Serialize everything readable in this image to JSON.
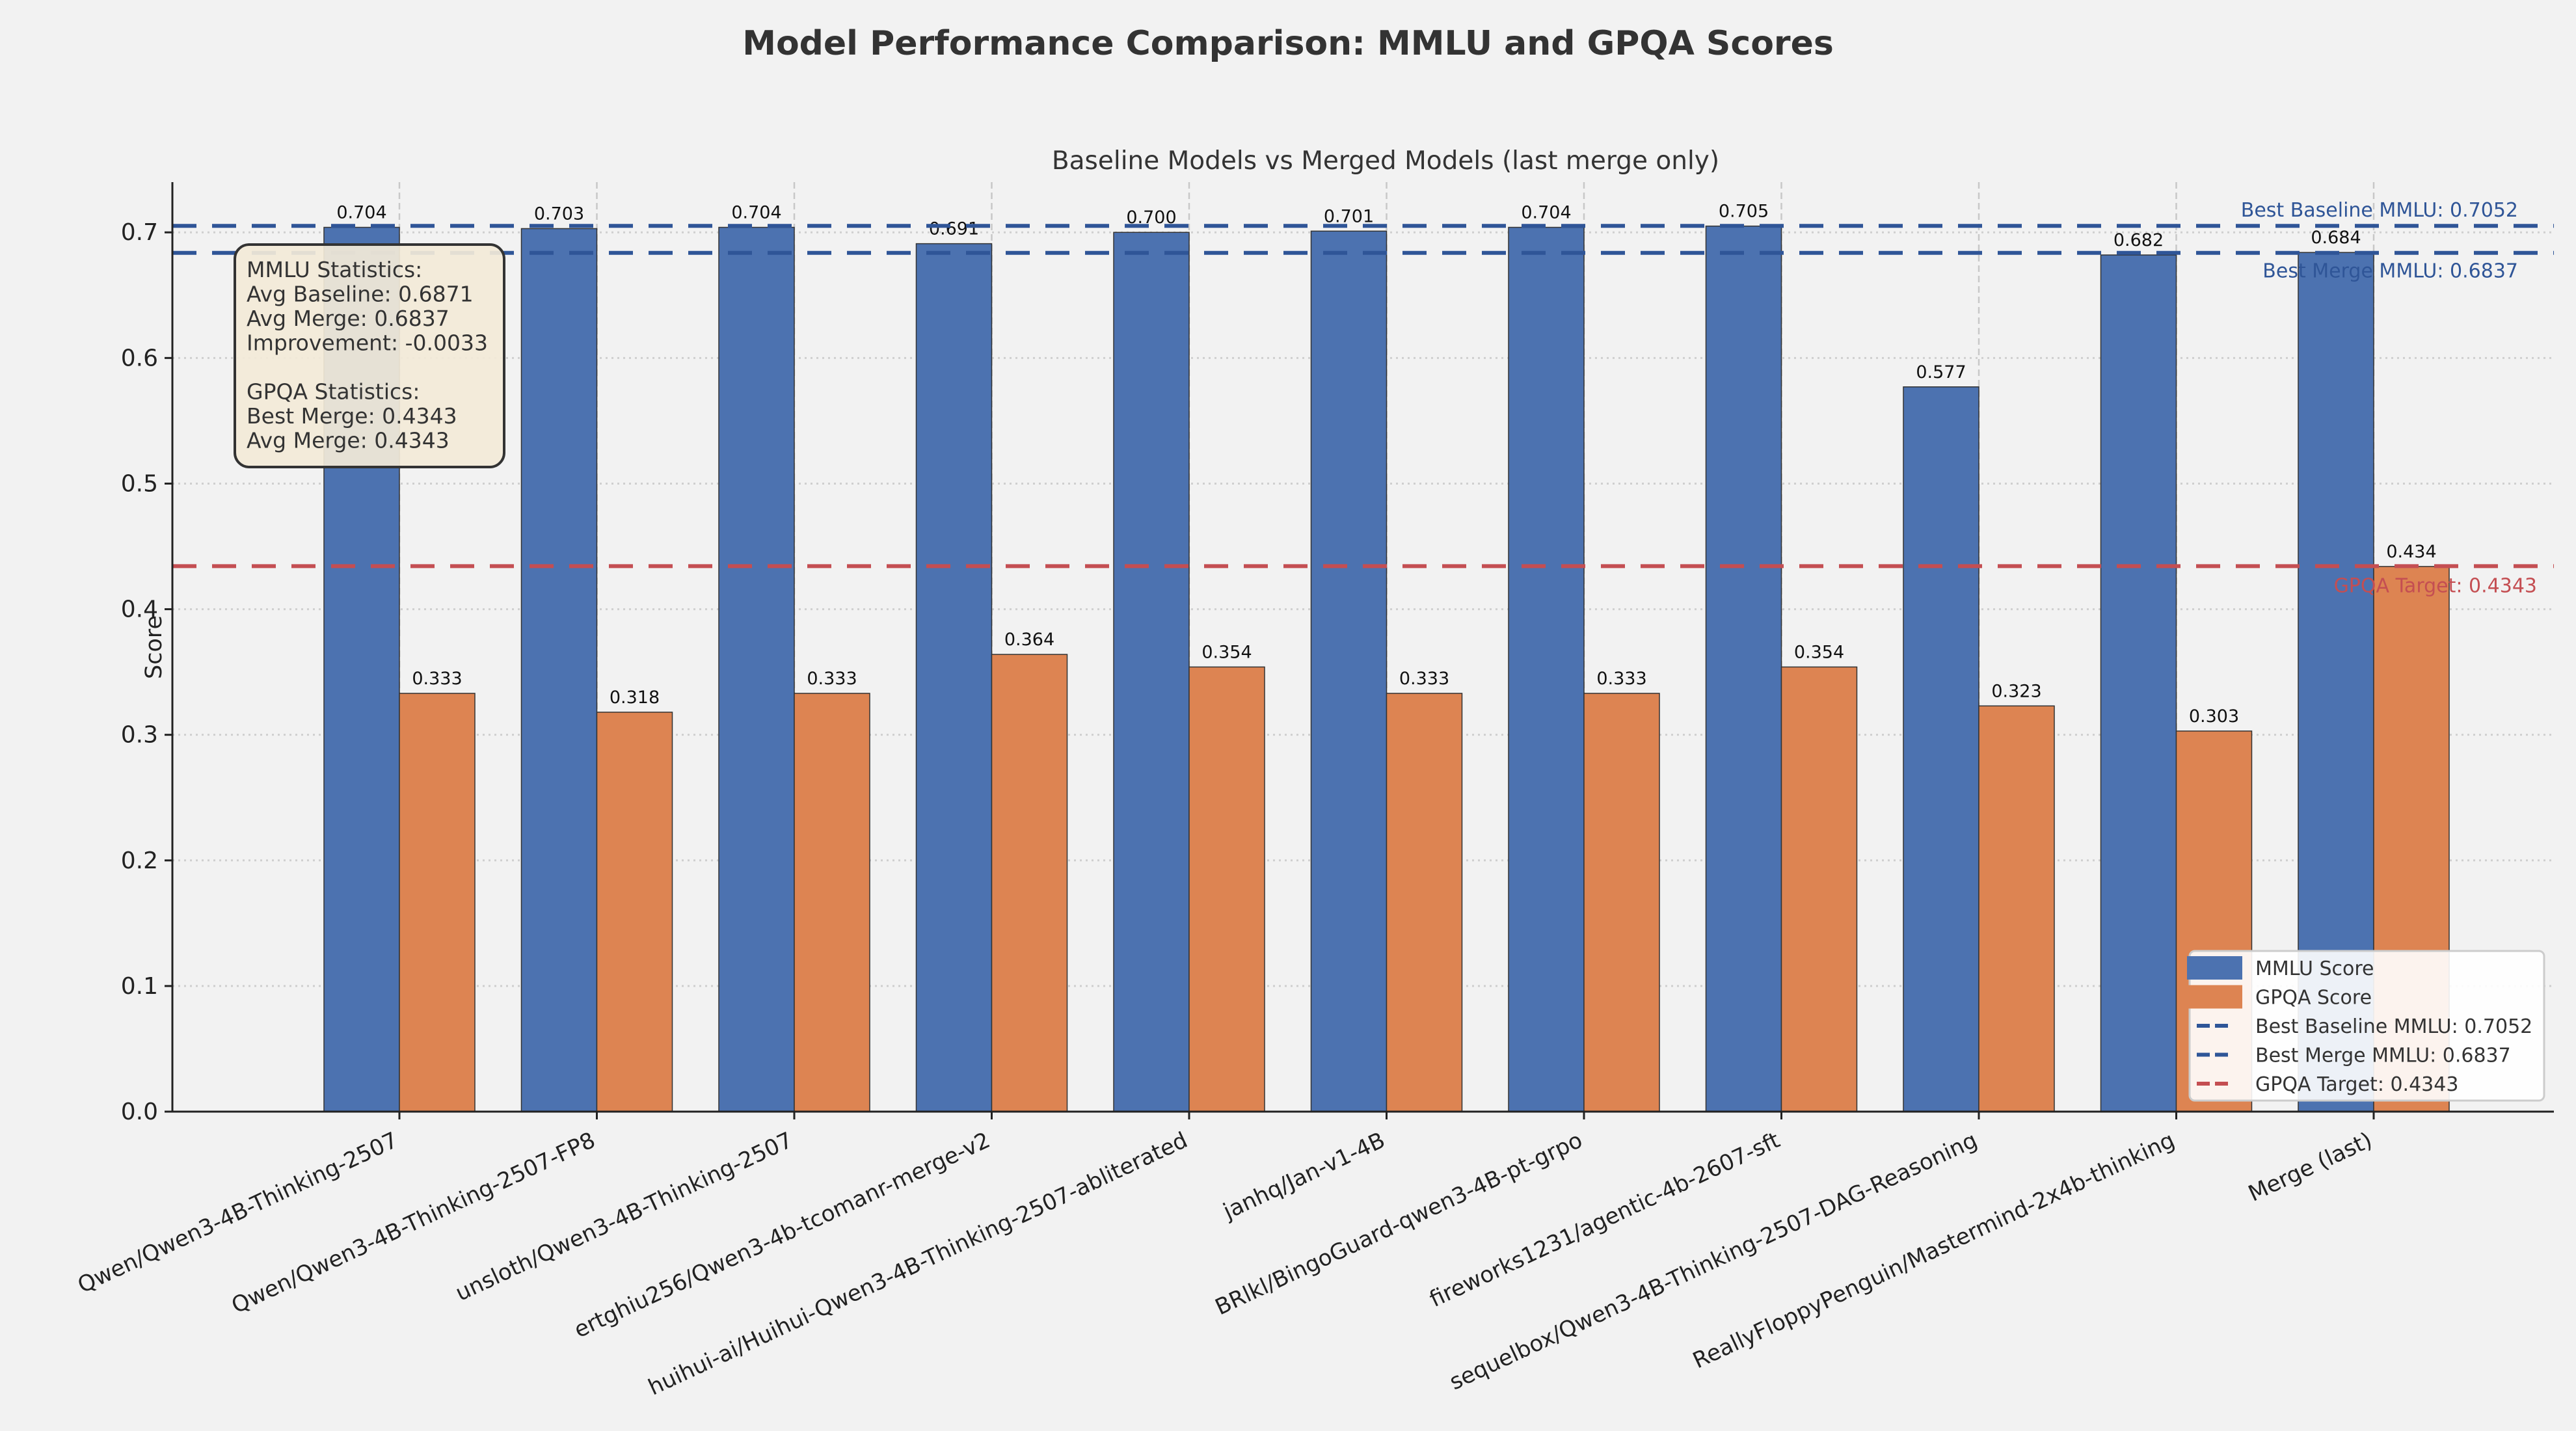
{
  "chart_data": {
    "type": "bar",
    "title": "Model Performance Comparison: MMLU and GPQA Scores",
    "subtitle": "Baseline Models vs Merged Models (last merge only)",
    "xlabel": "",
    "ylabel": "Score",
    "ylim": [
      0,
      0.74
    ],
    "yticks": [
      "0.0",
      "0.1",
      "0.2",
      "0.3",
      "0.4",
      "0.5",
      "0.6",
      "0.7"
    ],
    "grid": true,
    "legend_position": "bottom-right",
    "categories": [
      "Qwen/Qwen3-4B-Thinking-2507",
      "Qwen/Qwen3-4B-Thinking-2507-FP8",
      "unsloth/Qwen3-4B-Thinking-2507",
      "ertghiu256/Qwen3-4b-tcomanr-merge-v2",
      "huihui-ai/Huihui-Qwen3-4B-Thinking-2507-abliterated",
      "janhq/Jan-v1-4B",
      "BRlkl/BingoGuard-qwen3-4B-pt-grpo",
      "fireworks1231/agentic-4b-2607-sft",
      "sequelbox/Qwen3-4B-Thinking-2507-DAG-Reasoning",
      "ReallyFloppyPenguin/Mastermind-2x4b-thinking",
      "Merge (last)"
    ],
    "series": [
      {
        "name": "MMLU Score",
        "color": "#4c72b0",
        "values": [
          0.704,
          0.703,
          0.704,
          0.691,
          0.7,
          0.701,
          0.704,
          0.705,
          0.577,
          0.682,
          0.684
        ],
        "labels": [
          "0.704",
          "0.703",
          "0.704",
          "0.691",
          "0.700",
          "0.701",
          "0.704",
          "0.705",
          "0.577",
          "0.682",
          "0.684"
        ]
      },
      {
        "name": "GPQA Score",
        "color": "#dd8452",
        "values": [
          0.333,
          0.318,
          0.333,
          0.364,
          0.354,
          0.333,
          0.333,
          0.354,
          0.323,
          0.303,
          0.434
        ],
        "labels": [
          "0.333",
          "0.318",
          "0.333",
          "0.364",
          "0.354",
          "0.333",
          "0.333",
          "0.354",
          "0.323",
          "0.303",
          "0.434"
        ]
      }
    ],
    "reference_lines": [
      {
        "label": "Best Baseline MMLU: 0.7052",
        "value": 0.7052,
        "color": "#2f5597"
      },
      {
        "label": "Best Merge MMLU: 0.6837",
        "value": 0.6837,
        "color": "#2f5597"
      },
      {
        "label": "GPQA Target: 0.4343",
        "value": 0.4343,
        "color": "#c44e52"
      }
    ],
    "annotation_box": [
      "MMLU Statistics:",
      "Avg Baseline: 0.6871",
      "Avg Merge: 0.6837",
      "Improvement: -0.0033",
      "",
      "GPQA Statistics:",
      "Best Merge: 0.4343",
      "Avg Merge: 0.4343"
    ]
  }
}
